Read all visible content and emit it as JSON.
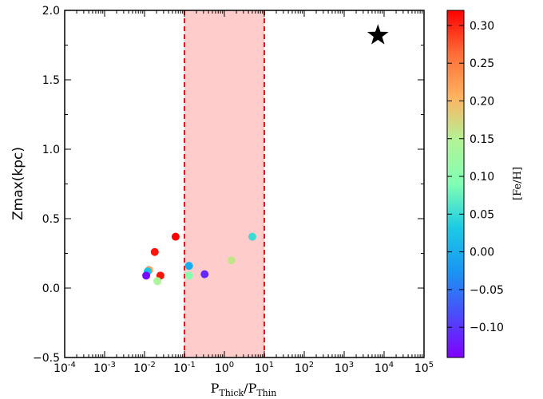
{
  "chart_data": {
    "type": "scatter",
    "xscale": "log",
    "xlim": [
      0.0001,
      100000
    ],
    "ylim": [
      -0.5,
      2.0
    ],
    "xlabel": {
      "main": "P",
      "sub1": "Thick",
      "sep": "/P",
      "sub2": "Thin"
    },
    "ylabel": "Zmax(kpc)",
    "y_ticks": [
      "−0.5",
      "0.0",
      "0.5",
      "1.0",
      "1.5",
      "2.0"
    ],
    "y_tick_values": [
      -0.5,
      0.0,
      0.5,
      1.0,
      1.5,
      2.0
    ],
    "x_tick_exponents": [
      "-4",
      "-3",
      "-2",
      "-1",
      "0",
      "1",
      "2",
      "3",
      "4",
      "5"
    ],
    "x_tick_values": [
      0.0001,
      0.001,
      0.01,
      0.1,
      1,
      10,
      100,
      1000,
      10000,
      100000
    ],
    "shaded_region": {
      "x": [
        0.1,
        10
      ],
      "fill": "#ffcccc",
      "border": "#e31a1c"
    },
    "points": [
      {
        "x": 0.06,
        "y": 0.37,
        "feh": 0.32
      },
      {
        "x": 0.018,
        "y": 0.26,
        "feh": 0.31
      },
      {
        "x": 0.013,
        "y": 0.13,
        "feh": 0.22
      },
      {
        "x": 0.012,
        "y": 0.12,
        "feh": 0.02
      },
      {
        "x": 0.011,
        "y": 0.09,
        "feh": -0.13
      },
      {
        "x": 0.025,
        "y": 0.09,
        "feh": 0.31
      },
      {
        "x": 0.021,
        "y": 0.05,
        "feh": 0.14
      },
      {
        "x": 0.13,
        "y": 0.16,
        "feh": 0.0
      },
      {
        "x": 0.13,
        "y": 0.09,
        "feh": 0.1
      },
      {
        "x": 0.32,
        "y": 0.1,
        "feh": -0.11
      },
      {
        "x": 1.5,
        "y": 0.2,
        "feh": 0.16
      },
      {
        "x": 5.0,
        "y": 0.37,
        "feh": 0.05
      }
    ],
    "highlight_marker": {
      "x": 7000,
      "y": 1.82,
      "shape": "star",
      "color": "#000000"
    },
    "colorbar": {
      "label": "[Fe/H]",
      "min": -0.14,
      "max": 0.32,
      "ticks": [
        "−0.10",
        "−0.05",
        "0.00",
        "0.05",
        "0.10",
        "0.15",
        "0.20",
        "0.25",
        "0.30"
      ],
      "tick_values": [
        -0.1,
        -0.05,
        0.0,
        0.05,
        0.1,
        0.15,
        0.2,
        0.25,
        0.3
      ],
      "colormap": "rainbow"
    },
    "grid": false,
    "legend": "none"
  }
}
